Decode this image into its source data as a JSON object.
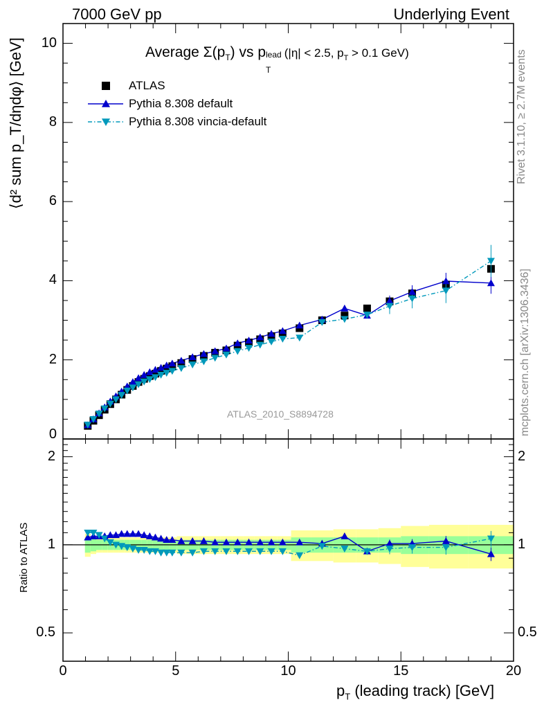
{
  "header": {
    "left": "7000 GeV pp",
    "right": "Underlying Event"
  },
  "side_text": {
    "rivet": "Rivet 3.1.10, ≥ 2.7M events",
    "mcplots": "mcplots.cern.ch [arXiv:1306.3436]"
  },
  "main_panel": {
    "title_prefix": "Average ",
    "title_sigma": "Σ(p",
    "title_sigma_sub": "T",
    "title_after_sigma": ") vs p",
    "title_lead_sup": "lead",
    "title_lead_sub": "T",
    "title_cuts": " (|η| < 2.5, p",
    "title_cuts_sub": "T",
    "title_end": " > 0.1 GeV)",
    "ylabel": "⟨d² sum p_T/dηdφ⟩ [GeV]",
    "watermark": "ATLAS_2010_S8894728",
    "ytick_labels": [
      "0",
      "2",
      "4",
      "6",
      "8",
      "10"
    ]
  },
  "ratio_panel": {
    "ylabel": "Ratio to ATLAS",
    "ytick_labels": [
      "0.5",
      "1",
      "2"
    ]
  },
  "xaxis": {
    "label_p": "p",
    "label_sub": "T",
    "label_rest": " (leading track) [GeV]",
    "tick_labels": [
      "0",
      "5",
      "10",
      "15",
      "20"
    ]
  },
  "legend": [
    {
      "name": "ATLAS",
      "color": "#000000",
      "marker": "square"
    },
    {
      "name": "Pythia 8.308 default",
      "color": "#0000cc",
      "marker": "triangle-up"
    },
    {
      "name": "Pythia 8.308 vincia-default",
      "color": "#0099bb",
      "marker": "triangle-down"
    }
  ],
  "chart_data": {
    "type": "scatter",
    "x": [
      1.1,
      1.35,
      1.6,
      1.85,
      2.1,
      2.35,
      2.6,
      2.85,
      3.1,
      3.35,
      3.6,
      3.85,
      4.1,
      4.35,
      4.6,
      4.85,
      5.25,
      5.75,
      6.25,
      6.75,
      7.25,
      7.75,
      8.25,
      8.75,
      9.25,
      9.75,
      10.5,
      11.5,
      12.5,
      13.5,
      14.5,
      15.5,
      17.0,
      19.0
    ],
    "xlim": [
      0,
      20
    ],
    "ylim": [
      0,
      10.5
    ],
    "series": [
      {
        "name": "ATLAS",
        "values": [
          0.33,
          0.46,
          0.6,
          0.74,
          0.88,
          1.0,
          1.12,
          1.24,
          1.34,
          1.44,
          1.52,
          1.59,
          1.65,
          1.72,
          1.78,
          1.84,
          1.92,
          2.02,
          2.1,
          2.18,
          2.24,
          2.36,
          2.44,
          2.52,
          2.6,
          2.67,
          2.8,
          3.0,
          3.12,
          3.3,
          3.48,
          3.68,
          3.9,
          4.3
        ]
      },
      {
        "name": "Pythia 8.308 default",
        "values": [
          0.35,
          0.5,
          0.65,
          0.8,
          0.95,
          1.08,
          1.2,
          1.33,
          1.44,
          1.54,
          1.62,
          1.69,
          1.75,
          1.8,
          1.86,
          1.91,
          1.98,
          2.07,
          2.15,
          2.22,
          2.29,
          2.42,
          2.49,
          2.57,
          2.66,
          2.73,
          2.87,
          3.02,
          3.3,
          3.12,
          3.49,
          3.72,
          3.99,
          3.94
        ]
      },
      {
        "name": "Pythia 8.308 vincia-default",
        "values": [
          0.36,
          0.5,
          0.64,
          0.77,
          0.89,
          1.0,
          1.11,
          1.22,
          1.3,
          1.38,
          1.45,
          1.51,
          1.56,
          1.62,
          1.67,
          1.72,
          1.79,
          1.88,
          1.96,
          2.05,
          2.13,
          2.22,
          2.3,
          2.38,
          2.46,
          2.53,
          2.56,
          2.95,
          3.03,
          3.14,
          3.36,
          3.55,
          3.75,
          4.5
        ]
      }
    ],
    "ratio": {
      "ylim": [
        0.4,
        2.3
      ],
      "scale": "log",
      "band_inner": [
        0.06,
        0.05,
        0.04,
        0.04,
        0.04,
        0.04,
        0.04,
        0.04,
        0.04,
        0.04,
        0.04,
        0.04,
        0.04,
        0.04,
        0.04,
        0.04,
        0.04,
        0.04,
        0.04,
        0.04,
        0.04,
        0.04,
        0.04,
        0.04,
        0.04,
        0.04,
        0.06,
        0.06,
        0.06,
        0.06,
        0.06,
        0.07,
        0.07,
        0.07
      ],
      "band_outer": [
        0.09,
        0.07,
        0.06,
        0.06,
        0.06,
        0.06,
        0.06,
        0.06,
        0.06,
        0.06,
        0.06,
        0.06,
        0.06,
        0.06,
        0.06,
        0.06,
        0.07,
        0.07,
        0.07,
        0.07,
        0.07,
        0.07,
        0.07,
        0.07,
        0.07,
        0.07,
        0.12,
        0.12,
        0.13,
        0.13,
        0.14,
        0.16,
        0.17,
        0.17
      ],
      "series": [
        {
          "name": "Pythia 8.308 default",
          "values": [
            1.06,
            1.07,
            1.07,
            1.07,
            1.08,
            1.08,
            1.09,
            1.09,
            1.09,
            1.09,
            1.08,
            1.07,
            1.06,
            1.05,
            1.04,
            1.04,
            1.03,
            1.03,
            1.03,
            1.02,
            1.02,
            1.02,
            1.02,
            1.02,
            1.02,
            1.02,
            1.02,
            1.01,
            1.07,
            0.95,
            1.01,
            1.01,
            1.03,
            0.93
          ]
        },
        {
          "name": "Pythia 8.308 vincia-default",
          "values": [
            1.1,
            1.1,
            1.08,
            1.05,
            1.02,
            1.0,
            0.99,
            0.98,
            0.97,
            0.96,
            0.96,
            0.95,
            0.95,
            0.94,
            0.94,
            0.94,
            0.94,
            0.94,
            0.95,
            0.95,
            0.95,
            0.95,
            0.95,
            0.95,
            0.95,
            0.95,
            0.92,
            0.99,
            0.97,
            0.95,
            0.97,
            0.98,
            0.98,
            1.05
          ]
        }
      ]
    }
  }
}
